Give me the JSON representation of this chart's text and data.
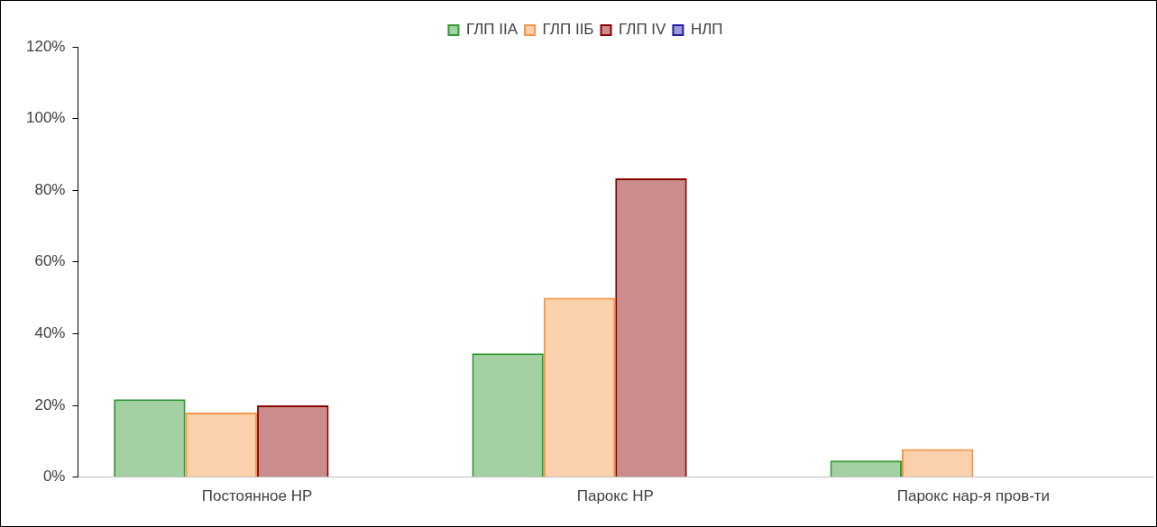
{
  "chart_data": {
    "type": "bar",
    "categories": [
      "Постоянное НР",
      "Парокс НР",
      "Парокс нар-я пров-ти"
    ],
    "series": [
      {
        "name": "ГЛП IIА",
        "color": "#339933",
        "values": [
          21.7,
          34.5,
          4.6
        ]
      },
      {
        "name": "ГЛП IIБ",
        "color": "#f79646",
        "values": [
          18,
          50,
          7.8
        ]
      },
      {
        "name": "ГЛП IV",
        "color": "#8b0000",
        "values": [
          20,
          83.3,
          null
        ]
      },
      {
        "name": "НЛП",
        "color": "#1f1fa0",
        "values": [
          null,
          null,
          null
        ]
      }
    ],
    "ylim": [
      0,
      120
    ],
    "yticks": [
      {
        "value": 0,
        "label": "0%"
      },
      {
        "value": 20,
        "label": "20%"
      },
      {
        "value": 40,
        "label": "40%"
      },
      {
        "value": 60,
        "label": "60%"
      },
      {
        "value": 80,
        "label": "80%"
      },
      {
        "value": 100,
        "label": "100%"
      },
      {
        "value": 120,
        "label": "120%"
      }
    ],
    "legend": "top",
    "grid": false
  }
}
